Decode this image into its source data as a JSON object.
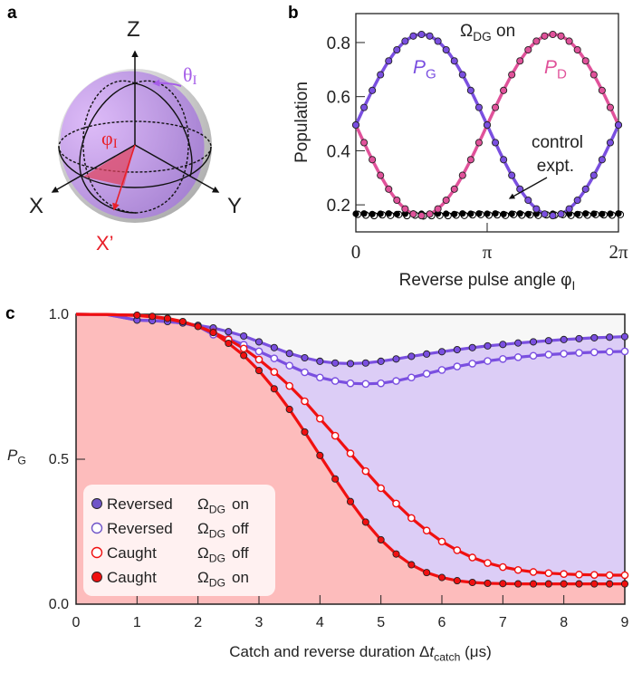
{
  "colors": {
    "pg": "#7a4fe0",
    "pd": "#e0529a",
    "control": "#000000",
    "reversed": "#7a4fe0",
    "reversed_marker": "#6f55c8",
    "caught": "#f01010",
    "fill_caught": "#fdbcbc",
    "fill_reversed": "#dccdf6",
    "fill_top": "#f7f7f7"
  },
  "panel_a": {
    "label": "a",
    "axes": [
      "Z",
      "X",
      "Y"
    ],
    "rotated_axis": "X’",
    "theta": "θ",
    "theta_sub": "I",
    "phi": "φ",
    "phi_sub": "I"
  },
  "chart_data": [
    {
      "panel": "b",
      "type": "scatter",
      "annotation_main": "Ω",
      "annotation_sub": "DG",
      "annotation_tail": " on",
      "control_label_1": "control",
      "control_label_2": "expt.",
      "xlabel": "Reverse pulse angle φ",
      "xlabel_sub": "I",
      "ylabel": "Population",
      "xlim": [
        0,
        6.2832
      ],
      "ylim": [
        0.1,
        0.907
      ],
      "xticks": [
        {
          "v": 0,
          "label": "0"
        },
        {
          "v": 3.1416,
          "label": "π"
        },
        {
          "v": 6.2832,
          "label": "2π"
        }
      ],
      "yticks": [
        {
          "v": 0.2,
          "label": "0.2"
        },
        {
          "v": 0.4,
          "label": "0.4"
        },
        {
          "v": 0.6,
          "label": "0.6"
        },
        {
          "v": 0.8,
          "label": "0.8"
        }
      ],
      "x_step_over_pi": 0.0625,
      "series": [
        {
          "name": "P",
          "sub": "G",
          "values": [
            0.495,
            0.56,
            0.623,
            0.681,
            0.732,
            0.773,
            0.805,
            0.824,
            0.83,
            0.824,
            0.805,
            0.773,
            0.732,
            0.681,
            0.623,
            0.56,
            0.495,
            0.43,
            0.367,
            0.309,
            0.258,
            0.217,
            0.185,
            0.166,
            0.16,
            0.166,
            0.185,
            0.217,
            0.258,
            0.309,
            0.367,
            0.43,
            0.495
          ]
        },
        {
          "name": "P",
          "sub": "D",
          "values": [
            0.495,
            0.43,
            0.367,
            0.309,
            0.258,
            0.217,
            0.185,
            0.166,
            0.16,
            0.166,
            0.185,
            0.217,
            0.258,
            0.309,
            0.367,
            0.43,
            0.495,
            0.56,
            0.623,
            0.681,
            0.732,
            0.773,
            0.805,
            0.824,
            0.83,
            0.824,
            0.805,
            0.773,
            0.732,
            0.681,
            0.623,
            0.56,
            0.495
          ]
        },
        {
          "marker": "filled",
          "values": [
            0.167,
            0.168,
            0.166,
            0.167,
            0.168,
            0.166,
            0.167,
            0.168,
            0.167,
            0.166,
            0.168,
            0.167,
            0.166,
            0.168,
            0.167,
            0.168,
            0.167,
            0.168,
            0.166,
            0.167,
            0.168,
            0.166,
            0.167,
            0.166,
            0.167,
            0.168,
            0.167,
            0.166,
            0.168,
            0.167,
            0.166,
            0.167,
            0.168
          ]
        },
        {
          "marker": "open",
          "values": [
            0.165,
            0.162,
            0.16,
            0.163,
            0.161,
            0.164,
            0.16,
            0.162,
            0.159,
            0.16,
            0.161,
            0.16,
            0.162,
            0.161,
            0.163,
            0.164,
            0.162,
            0.163,
            0.161,
            0.164,
            0.162,
            0.163,
            0.161,
            0.163,
            0.162,
            0.164,
            0.161,
            0.163,
            0.162,
            0.164,
            0.163,
            0.162,
            0.164
          ]
        }
      ]
    },
    {
      "panel": "c",
      "type": "line",
      "xlabel": "Catch and reverse duration Δ",
      "xlabel_var": "t",
      "xlabel_sub": "catch",
      "xlabel_unit": " (μs)",
      "ylabel": "P",
      "ylabel_sub": "G",
      "xlim": [
        0,
        9
      ],
      "ylim": [
        0,
        1
      ],
      "xticks": [
        "0",
        "1",
        "2",
        "3",
        "4",
        "5",
        "6",
        "7",
        "8",
        "9"
      ],
      "yticks": [
        {
          "v": 0,
          "label": "0.0"
        },
        {
          "v": 0.5,
          "label": "0.5"
        },
        {
          "v": 1,
          "label": "1.0"
        }
      ],
      "x": [
        1,
        1.25,
        1.5,
        1.75,
        2,
        2.25,
        2.5,
        2.75,
        3,
        3.25,
        3.5,
        3.75,
        4,
        4.25,
        4.5,
        4.75,
        5,
        5.25,
        5.5,
        5.75,
        6,
        6.25,
        6.5,
        6.75,
        7,
        7.25,
        7.5,
        7.75,
        8,
        8.25,
        8.5,
        8.75,
        9
      ],
      "series": [
        {
          "name": "Reversed",
          "omega": "Ω",
          "sub": "DG",
          "state": "on",
          "marker": "filled",
          "color_key": "reversed",
          "values": [
            0.98,
            0.978,
            0.975,
            0.97,
            0.962,
            0.953,
            0.94,
            0.925,
            0.905,
            0.885,
            0.865,
            0.85,
            0.838,
            0.832,
            0.83,
            0.832,
            0.838,
            0.846,
            0.855,
            0.863,
            0.871,
            0.878,
            0.885,
            0.891,
            0.896,
            0.901,
            0.905,
            0.909,
            0.913,
            0.916,
            0.919,
            0.921,
            0.923
          ]
        },
        {
          "name": "Reversed",
          "omega": "Ω",
          "sub": "DG",
          "state": "off",
          "marker": "open",
          "color_key": "reversed",
          "values": [
            0.98,
            0.978,
            0.975,
            0.97,
            0.958,
            0.93,
            0.915,
            0.895,
            0.872,
            0.848,
            0.823,
            0.8,
            0.782,
            0.77,
            0.762,
            0.76,
            0.762,
            0.77,
            0.782,
            0.795,
            0.808,
            0.82,
            0.83,
            0.839,
            0.846,
            0.852,
            0.857,
            0.861,
            0.864,
            0.867,
            0.869,
            0.871,
            0.872
          ]
        },
        {
          "name": "Caught",
          "omega": "Ω",
          "sub": "DG",
          "state": "off",
          "marker": "open",
          "color_key": "caught",
          "values": [
            0.996,
            0.991,
            0.984,
            0.973,
            0.958,
            0.938,
            0.913,
            0.882,
            0.844,
            0.801,
            0.753,
            0.7,
            0.64,
            0.581,
            0.52,
            0.459,
            0.4,
            0.347,
            0.297,
            0.254,
            0.216,
            0.186,
            0.161,
            0.142,
            0.128,
            0.118,
            0.111,
            0.107,
            0.104,
            0.102,
            0.101,
            0.1,
            0.1
          ]
        },
        {
          "name": "Caught",
          "omega": "Ω",
          "sub": "DG",
          "state": "on",
          "marker": "filled",
          "color_key": "caught",
          "values": [
            0.997,
            0.993,
            0.986,
            0.975,
            0.958,
            0.937,
            0.9,
            0.858,
            0.806,
            0.743,
            0.672,
            0.594,
            0.513,
            0.432,
            0.354,
            0.283,
            0.222,
            0.173,
            0.136,
            0.109,
            0.092,
            0.081,
            0.075,
            0.072,
            0.071,
            0.07,
            0.07,
            0.07,
            0.07,
            0.07,
            0.07,
            0.07,
            0.07
          ]
        }
      ]
    }
  ],
  "labels": {
    "b": "b",
    "c": "c"
  }
}
